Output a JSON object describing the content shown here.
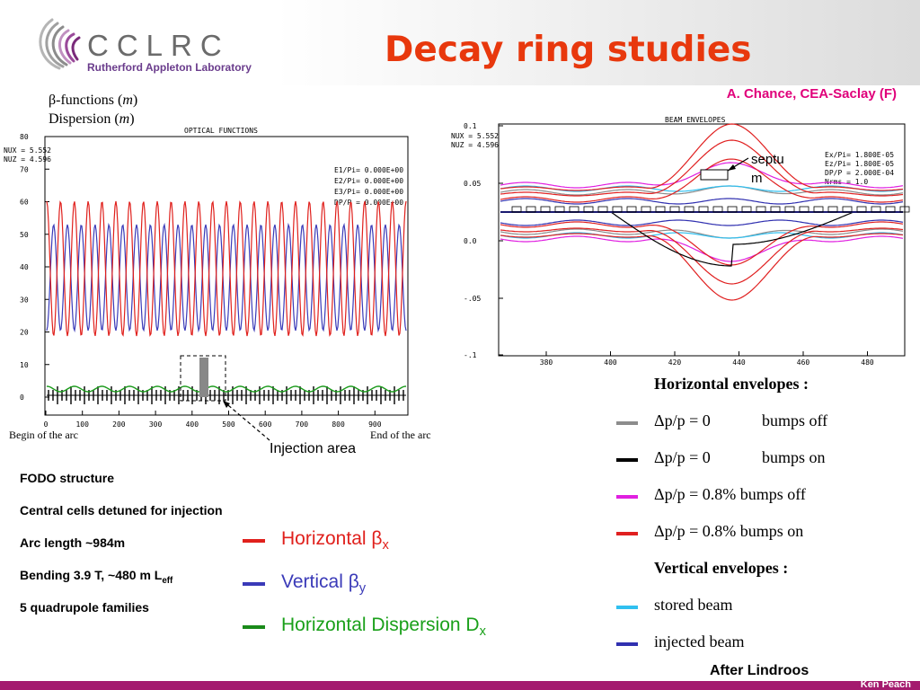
{
  "header": {
    "logo_text": "CCLRC",
    "logo_sub": "Rutherford Appleton Laboratory",
    "title": "Decay ring studies",
    "credit": "A. Chance, CEA-Saclay (F)"
  },
  "left_caption": {
    "line1_prefix": "β-functions (",
    "line1_unit": "m",
    "line1_suffix": ")",
    "line2_prefix": "Dispersion (",
    "line2_unit": "m",
    "line2_suffix": ")"
  },
  "optics_plot": {
    "title": "OPTICAL FUNCTIONS",
    "nux": "NUX  =  5.552",
    "nuz": "NUZ  =  4.596",
    "params": [
      "E1/Pi=  0.000E+00",
      "E2/Pi=  0.000E+00",
      "E3/Pi=  0.000E+00",
      "DP/P =  0.000E+00"
    ],
    "y_ticks": [
      "80",
      "70",
      "60",
      "50",
      "40",
      "30",
      "20",
      "10",
      "0"
    ],
    "x_ticks": [
      "0",
      "100",
      "200",
      "300",
      "400",
      "500",
      "600",
      "700",
      "800",
      "900"
    ],
    "begin_label": "Begin of the arc",
    "end_label": "End of the arc",
    "injection_label": "Injection area"
  },
  "envelope_plot": {
    "title": "BEAM ENVELOPES",
    "nux": "NUX  =  5.552",
    "nuz": "NUZ  =  4.596",
    "params": [
      "Ex/Pi=  1.800E-05",
      "Ez/Pi=  1.800E-05",
      "DP/P =  2.000E-04",
      "Nrms =  1.0"
    ],
    "y_ticks": [
      "0.1",
      "0.05",
      "0.0",
      "-.05",
      "-.1"
    ],
    "x_ticks": [
      "380",
      "400",
      "420",
      "440",
      "460",
      "480"
    ],
    "septum_label_1": "septu",
    "septum_label_2": "m"
  },
  "bullets": {
    "fodo": "FODO structure",
    "detuned": "Central cells detuned for injection",
    "arc_prefix": "Arc length ~984m",
    "bending_prefix": "Bending 3.9 T, ~480 m L",
    "bending_sub": "eff",
    "quads": "5 quadrupole families"
  },
  "legend_left": [
    {
      "label": "Horizontal β",
      "sub": "x",
      "color": "#e0201c"
    },
    {
      "label": "Vertical β",
      "sub": "y",
      "color": "#3a3ab8"
    },
    {
      "label": "Horizontal Dispersion D",
      "sub": "x",
      "color": "#1a8a1a"
    }
  ],
  "legend_right": {
    "horiz_heading": "Horizontal envelopes :",
    "rows": [
      {
        "a": "Δp/p = 0",
        "b": "bumps off",
        "color": "#8c8c8c"
      },
      {
        "a": "Δp/p = 0",
        "b": "bumps on",
        "color": "#000000"
      },
      {
        "a": "Δp/p = 0.8%",
        "b": "bumps off",
        "color": "#e020e0"
      },
      {
        "a": "Δp/p = 0.8%",
        "b": "bumps on",
        "color": "#e02020"
      }
    ],
    "vert_heading": "Vertical envelopes :",
    "vert_rows": [
      {
        "label": "stored beam",
        "color": "#30c0f0"
      },
      {
        "label": "injected beam",
        "color": "#3030b0"
      }
    ]
  },
  "footer": {
    "after": "After Lindroos",
    "name": "Ken Peach"
  }
}
